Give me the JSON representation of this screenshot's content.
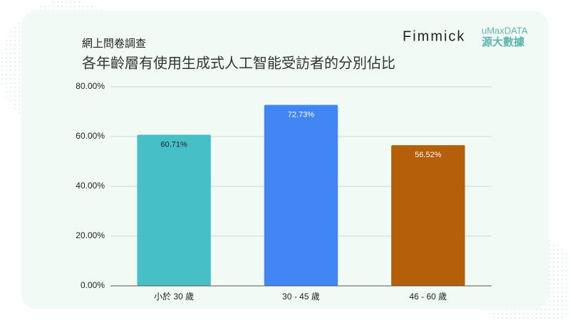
{
  "logos": [
    "Fimmick",
    "uMaxDATA",
    "源大數據"
  ],
  "chart_data": {
    "type": "bar",
    "subtitle": "網上問卷調查",
    "title": "各年齡層有使用生成式人工智能受訪者的分別佔比",
    "categories": [
      "小於 30 歲",
      "30 - 45 歲",
      "46 - 60 歲"
    ],
    "values": [
      60.71,
      72.73,
      56.52
    ],
    "value_labels": [
      "60.71%",
      "72.73%",
      "56.52%"
    ],
    "colors": [
      "#47bfc6",
      "#4285f4",
      "#b65f0a"
    ],
    "ylim": [
      0,
      80
    ],
    "yticks": [
      {
        "value": 0,
        "label": "0.00%"
      },
      {
        "value": 20,
        "label": "20.00%"
      },
      {
        "value": 40,
        "label": "40.00%"
      },
      {
        "value": 60,
        "label": "60.00%"
      },
      {
        "value": 80,
        "label": "80.00%"
      }
    ],
    "grid": true
  }
}
